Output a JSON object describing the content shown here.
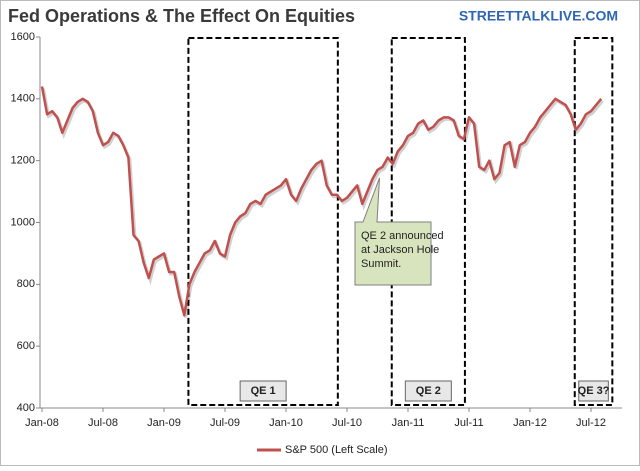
{
  "chart_data": {
    "type": "line",
    "title": "Fed Operations & The Effect On Equities",
    "source": "STREETTALKLIVE.COM",
    "categories": [
      "Jan-08",
      null,
      null,
      null,
      null,
      null,
      null,
      null,
      null,
      null,
      null,
      null,
      "Jul-08",
      null,
      null,
      null,
      null,
      null,
      null,
      null,
      null,
      null,
      null,
      null,
      "Jan-09",
      null,
      null,
      null,
      null,
      null,
      null,
      null,
      null,
      null,
      null,
      null,
      "Jul-09",
      null,
      null,
      null,
      null,
      null,
      null,
      null,
      null,
      null,
      null,
      null,
      "Jan-10",
      null,
      null,
      null,
      null,
      null,
      null,
      null,
      null,
      null,
      null,
      null,
      "Jul-10",
      null,
      null,
      null,
      null,
      null,
      null,
      null,
      null,
      null,
      null,
      null,
      "Jan-11",
      null,
      null,
      null,
      null,
      null,
      null,
      null,
      null,
      null,
      null,
      null,
      "Jul-11",
      null,
      null,
      null,
      null,
      null,
      null,
      null,
      null,
      null,
      null,
      null,
      "Jan-12",
      null,
      null,
      null,
      null,
      null,
      null,
      null,
      null,
      null,
      null,
      null,
      "Jul-12",
      null,
      null
    ],
    "series": [
      {
        "name": "S&P 500 (Left Scale)",
        "color": "#c0504d",
        "values": [
          1440,
          1350,
          1360,
          1340,
          1290,
          1330,
          1370,
          1390,
          1400,
          1390,
          1360,
          1290,
          1250,
          1260,
          1290,
          1280,
          1250,
          1210,
          960,
          940,
          870,
          820,
          880,
          890,
          900,
          840,
          840,
          760,
          700,
          800,
          840,
          870,
          900,
          910,
          940,
          900,
          890,
          960,
          1000,
          1020,
          1030,
          1060,
          1070,
          1060,
          1090,
          1100,
          1110,
          1120,
          1140,
          1090,
          1070,
          1110,
          1140,
          1170,
          1190,
          1200,
          1120,
          1090,
          1090,
          1070,
          1080,
          1100,
          1120,
          1060,
          1100,
          1140,
          1170,
          1180,
          1210,
          1190,
          1230,
          1250,
          1280,
          1290,
          1320,
          1330,
          1300,
          1310,
          1330,
          1340,
          1340,
          1330,
          1280,
          1270,
          1340,
          1320,
          1180,
          1170,
          1200,
          1140,
          1160,
          1250,
          1260,
          1180,
          1250,
          1260,
          1290,
          1310,
          1340,
          1360,
          1380,
          1400,
          1390,
          1380,
          1350,
          1300,
          1320,
          1350,
          1360,
          1380,
          1400
        ]
      }
    ],
    "ylim": [
      400,
      1600
    ],
    "yticks": [
      400,
      600,
      800,
      1000,
      1200,
      1400,
      1600
    ],
    "grid": false,
    "regions": [
      {
        "label": "QE 1",
        "start": 29,
        "end": 58
      },
      {
        "label": "QE 2",
        "start": 69,
        "end": 83
      },
      {
        "label": "QE 3?",
        "start": 105,
        "end": 112
      }
    ],
    "callout": {
      "lines": [
        "QE 2 announced",
        "at Jackson Hole",
        "Summit."
      ],
      "at": 66
    },
    "legend": "bottom"
  }
}
